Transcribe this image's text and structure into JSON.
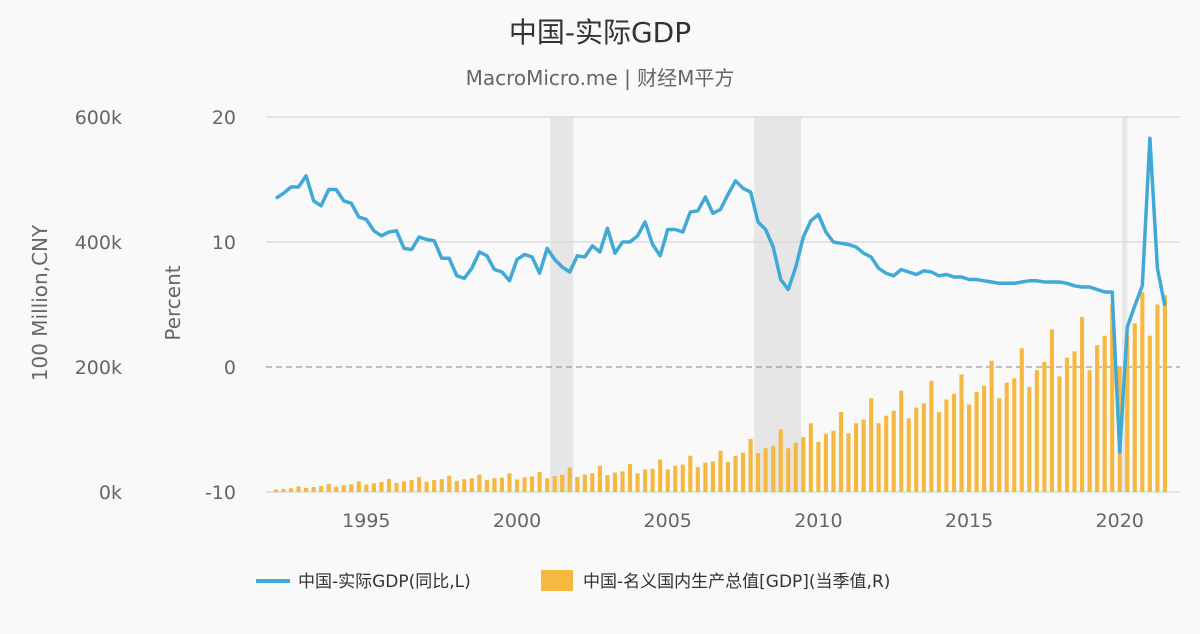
{
  "header": {
    "title": "中国-实际GDP",
    "subtitle": "MacroMicro.me | 财经M平方"
  },
  "colors": {
    "line": "#41a9d6",
    "bar": "#f5b942",
    "recession": "#e6e6e6",
    "grid": "#d8d8d8",
    "zero": "#9a9a9a"
  },
  "chart_data": {
    "type": "bar",
    "xlim": [
      1991.67,
      2022.0
    ],
    "x_ticks": [
      1995,
      2000,
      2005,
      2010,
      2015,
      2020
    ],
    "left_axis_label": "100 Million,CNY",
    "left_ylim": [
      0,
      600000
    ],
    "left_ticks": [
      {
        "value": 0,
        "label": "0k"
      },
      {
        "value": 200000,
        "label": "200k"
      },
      {
        "value": 400000,
        "label": "400k"
      },
      {
        "value": 600000,
        "label": "600k"
      }
    ],
    "right_axis_label": "Percent",
    "right_ylim": [
      -10,
      20
    ],
    "right_ticks": [
      {
        "value": -10,
        "label": "-10"
      },
      {
        "value": 0,
        "label": "0"
      },
      {
        "value": 10,
        "label": "10"
      },
      {
        "value": 20,
        "label": "20"
      }
    ],
    "zero_line": 0,
    "recession_bands": [
      [
        2001.1,
        2001.87
      ],
      [
        2007.87,
        2009.43
      ],
      [
        2020.08,
        2020.25
      ]
    ],
    "legend": [
      {
        "label": "中国-实际GDP(同比,L)",
        "kind": "line"
      },
      {
        "label": "中国-名义国内生产总值[GDP](当季值,R)",
        "kind": "bar"
      }
    ],
    "series": [
      {
        "name": "中国-实际GDP(同比,L)",
        "type": "line",
        "axis": "right",
        "start": 1992.0,
        "step": 0.25,
        "values": [
          13.5,
          13.9,
          14.4,
          14.4,
          15.3,
          13.3,
          12.9,
          14.2,
          14.2,
          13.3,
          13.1,
          12.0,
          11.8,
          10.9,
          10.5,
          10.8,
          10.9,
          9.5,
          9.4,
          10.4,
          10.2,
          10.1,
          8.7,
          8.7,
          7.3,
          7.1,
          7.9,
          9.2,
          8.9,
          7.8,
          7.6,
          6.9,
          8.6,
          9.0,
          8.8,
          7.5,
          9.5,
          8.6,
          8.0,
          7.6,
          8.9,
          8.8,
          9.7,
          9.2,
          11.1,
          9.1,
          10.0,
          10.0,
          10.5,
          11.6,
          9.8,
          8.9,
          11.0,
          11.0,
          10.8,
          12.4,
          12.5,
          13.6,
          12.3,
          12.6,
          13.8,
          14.9,
          14.3,
          14.0,
          11.6,
          11.0,
          9.6,
          7.0,
          6.2,
          8.0,
          10.4,
          11.7,
          12.2,
          10.8,
          10.0,
          9.9,
          9.8,
          9.6,
          9.1,
          8.8,
          7.9,
          7.5,
          7.3,
          7.8,
          7.6,
          7.4,
          7.7,
          7.6,
          7.3,
          7.4,
          7.2,
          7.2,
          7.0,
          7.0,
          6.9,
          6.8,
          6.7,
          6.7,
          6.7,
          6.8,
          6.9,
          6.9,
          6.8,
          6.8,
          6.8,
          6.7,
          6.5,
          6.4,
          6.4,
          6.2,
          6.0,
          6.0,
          -6.8,
          3.2,
          4.9,
          6.5,
          18.3,
          7.9,
          4.9
        ]
      },
      {
        "name": "中国-名义国内生产总值[GDP](当季值,R)",
        "type": "bar",
        "axis": "left",
        "start": 1992.0,
        "step": 0.25,
        "values": [
          4000,
          5000,
          6000,
          9000,
          6500,
          8000,
          9500,
          13000,
          8500,
          11000,
          12500,
          17000,
          12000,
          14000,
          16000,
          21000,
          14500,
          17000,
          19000,
          24000,
          16500,
          19000,
          20500,
          26000,
          18000,
          20500,
          22000,
          28000,
          19500,
          22000,
          23000,
          30000,
          20000,
          23500,
          25000,
          32000,
          22000,
          25500,
          27500,
          39000,
          24000,
          28000,
          30000,
          42000,
          27000,
          31000,
          33000,
          45000,
          30000,
          36000,
          37000,
          52000,
          36000,
          42000,
          44000,
          58000,
          40000,
          47000,
          49000,
          66000,
          48000,
          58000,
          63000,
          85000,
          62000,
          70000,
          74000,
          100000,
          70000,
          79000,
          88000,
          110000,
          80000,
          93000,
          98000,
          128000,
          94000,
          110000,
          116000,
          150000,
          110000,
          122000,
          130000,
          162000,
          118000,
          135000,
          142000,
          178000,
          128000,
          148000,
          157000,
          188000,
          140000,
          160000,
          170000,
          210000,
          150000,
          175000,
          182000,
          230000,
          168000,
          195000,
          208000,
          260000,
          185000,
          215000,
          225000,
          280000,
          195000,
          235000,
          250000,
          300000,
          200000,
          250000,
          270000,
          320000,
          250000,
          300000,
          315000
        ]
      }
    ]
  }
}
